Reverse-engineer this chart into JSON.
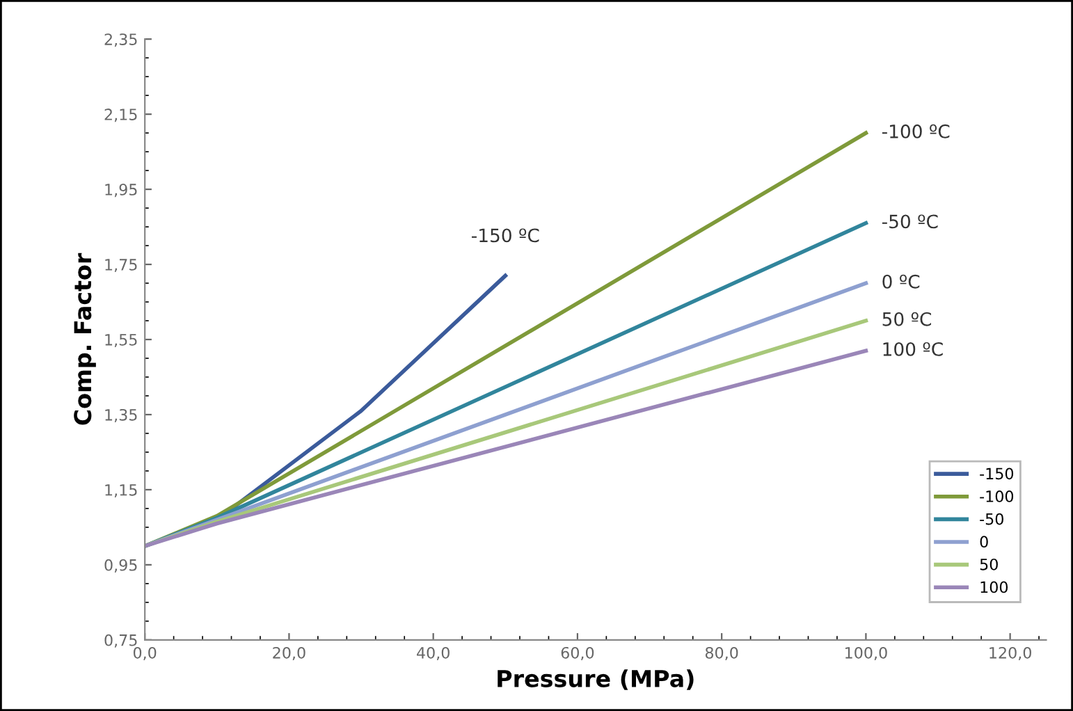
{
  "chart_data": {
    "type": "line",
    "xlabel": "Pressure (MPa)",
    "ylabel": "Comp. Factor",
    "xlim": [
      0,
      125
    ],
    "ylim": [
      0.75,
      2.35
    ],
    "xticks": [
      {
        "value": 0,
        "label": "0,0"
      },
      {
        "value": 20,
        "label": "20,0"
      },
      {
        "value": 40,
        "label": "40,0"
      },
      {
        "value": 60,
        "label": "60,0"
      },
      {
        "value": 80,
        "label": "80,0"
      },
      {
        "value": 100,
        "label": "100,0"
      },
      {
        "value": 120,
        "label": "120,0"
      }
    ],
    "yticks": [
      {
        "value": 0.75,
        "label": "0,75"
      },
      {
        "value": 0.95,
        "label": "0,95"
      },
      {
        "value": 1.15,
        "label": "1,15"
      },
      {
        "value": 1.35,
        "label": "1,35"
      },
      {
        "value": 1.55,
        "label": "1,55"
      },
      {
        "value": 1.75,
        "label": "1,75"
      },
      {
        "value": 1.95,
        "label": "1,95"
      },
      {
        "value": 2.15,
        "label": "2,15"
      },
      {
        "value": 2.35,
        "label": "2,35"
      }
    ],
    "grid": false,
    "legend": "bottom right",
    "marker": "none",
    "line_style": "solid",
    "series": [
      {
        "name": "-150",
        "color": "#3b5b9b",
        "x": [
          0,
          10,
          30,
          50
        ],
        "values": [
          1.0,
          1.07,
          1.36,
          1.72
        ]
      },
      {
        "name": "-100",
        "color": "#7f9a3a",
        "x": [
          0,
          10,
          100
        ],
        "values": [
          1.0,
          1.08,
          2.1
        ]
      },
      {
        "name": "-50",
        "color": "#31859c",
        "x": [
          0,
          10,
          100
        ],
        "values": [
          1.0,
          1.075,
          1.86
        ]
      },
      {
        "name": "0",
        "color": "#8ea0d0",
        "x": [
          0,
          10,
          100
        ],
        "values": [
          1.0,
          1.07,
          1.7
        ]
      },
      {
        "name": "50",
        "color": "#a8c87a",
        "x": [
          0,
          10,
          100
        ],
        "values": [
          1.0,
          1.065,
          1.6
        ]
      },
      {
        "name": "100",
        "color": "#9a86b8",
        "x": [
          0,
          10,
          100
        ],
        "values": [
          1.0,
          1.06,
          1.52
        ]
      }
    ],
    "annotations": [
      "-150 ºC",
      "-100 ºC",
      "-50 ºC",
      "0 ºC",
      "50 ºC",
      "100 ºC"
    ]
  }
}
